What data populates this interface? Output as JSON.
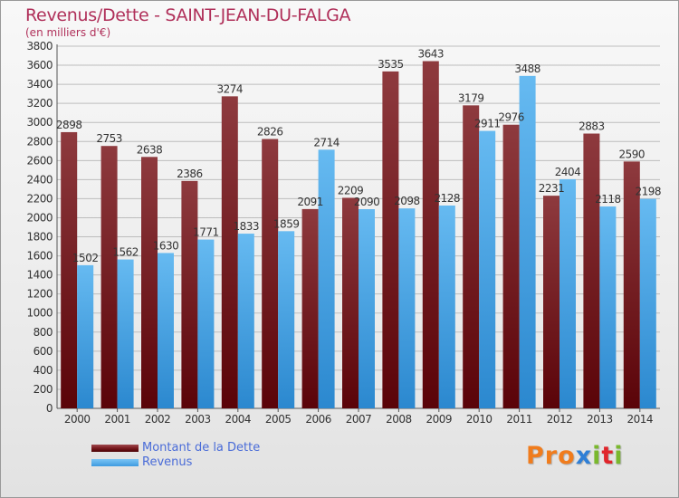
{
  "header": {
    "title": "Revenus/Dette - SAINT-JEAN-DU-FALGA",
    "subtitle": "(en milliers d'€)"
  },
  "legend": {
    "items": [
      {
        "label": "Montant de la Dette",
        "color": "#7a1a1f"
      },
      {
        "label": "Revenus",
        "color": "#3f9be0"
      }
    ]
  },
  "logo": {
    "text": "Proxiti",
    "colors": [
      "#f07c1d",
      "#f07c1d",
      "#f07c1d",
      "#2f7fd6",
      "#7ab82e",
      "#e0252b",
      "#7ab82e"
    ]
  },
  "colors": {
    "debt_top": "#8e3a3e",
    "debt_bottom": "#5a0308",
    "revenue_top": "#66baf1",
    "revenue_bottom": "#2b88cf",
    "grid": "#bdbdbd",
    "text": "#333333",
    "title": "#b0305a"
  },
  "chart_data": {
    "type": "bar",
    "categories": [
      "2000",
      "2001",
      "2002",
      "2003",
      "2004",
      "2005",
      "2006",
      "2007",
      "2008",
      "2009",
      "2010",
      "2011",
      "2012",
      "2013",
      "2014"
    ],
    "series": [
      {
        "name": "Montant de la Dette",
        "values": [
          2898,
          2753,
          2638,
          2386,
          3274,
          2826,
          2091,
          2209,
          3535,
          3643,
          3179,
          2976,
          2231,
          2883,
          2590
        ],
        "labels": [
          "2898",
          "2753",
          "2638",
          "2386",
          "3274",
          "2826",
          "2091",
          "2209",
          "3535",
          "3643",
          "3179",
          "2976",
          "2231",
          "2883",
          "2590"
        ]
      },
      {
        "name": "Revenus",
        "values": [
          1502,
          1562,
          1630,
          1771,
          1833,
          1859,
          2714,
          2090,
          2098,
          2128,
          2911,
          3488,
          2404,
          2118,
          2198
        ],
        "labels": [
          "1502",
          "1562",
          "1630",
          "1771",
          "1833",
          "1859",
          "2714",
          "2090",
          "2098",
          "2128",
          "2911",
          "3488",
          "2404",
          "2118",
          "2198"
        ]
      }
    ],
    "yticks": [
      0,
      200,
      400,
      600,
      800,
      1000,
      1200,
      1400,
      1600,
      1800,
      2000,
      2200,
      2400,
      2600,
      2800,
      3000,
      3200,
      3400,
      3600,
      3800
    ],
    "ylim": [
      0,
      3800
    ],
    "grid": true,
    "legend_position": "bottom-left"
  }
}
